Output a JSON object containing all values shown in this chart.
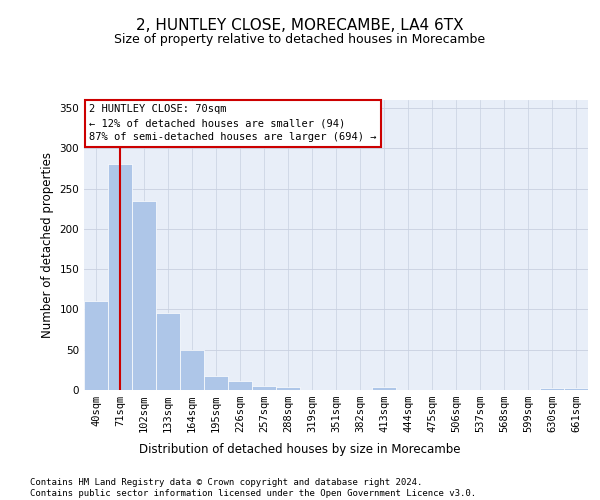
{
  "title": "2, HUNTLEY CLOSE, MORECAMBE, LA4 6TX",
  "subtitle": "Size of property relative to detached houses in Morecambe",
  "xlabel": "Distribution of detached houses by size in Morecambe",
  "ylabel": "Number of detached properties",
  "categories": [
    "40sqm",
    "71sqm",
    "102sqm",
    "133sqm",
    "164sqm",
    "195sqm",
    "226sqm",
    "257sqm",
    "288sqm",
    "319sqm",
    "351sqm",
    "382sqm",
    "413sqm",
    "444sqm",
    "475sqm",
    "506sqm",
    "537sqm",
    "568sqm",
    "599sqm",
    "630sqm",
    "661sqm"
  ],
  "values": [
    110,
    280,
    235,
    95,
    50,
    18,
    11,
    5,
    4,
    0,
    0,
    0,
    4,
    0,
    0,
    0,
    0,
    0,
    0,
    3,
    3
  ],
  "bar_color": "#aec6e8",
  "grid_color": "#c8d0e0",
  "background_color": "#e8eef8",
  "vline_x": 1.0,
  "vline_color": "#cc0000",
  "annotation_text": "2 HUNTLEY CLOSE: 70sqm\n← 12% of detached houses are smaller (94)\n87% of semi-detached houses are larger (694) →",
  "annotation_box_color": "#ffffff",
  "annotation_border_color": "#cc0000",
  "footer_text": "Contains HM Land Registry data © Crown copyright and database right 2024.\nContains public sector information licensed under the Open Government Licence v3.0.",
  "ylim": [
    0,
    360
  ],
  "yticks": [
    0,
    50,
    100,
    150,
    200,
    250,
    300,
    350
  ],
  "title_fontsize": 11,
  "subtitle_fontsize": 9,
  "xlabel_fontsize": 8.5,
  "ylabel_fontsize": 8.5,
  "tick_fontsize": 7.5,
  "footer_fontsize": 6.5,
  "annotation_fontsize": 7.5
}
